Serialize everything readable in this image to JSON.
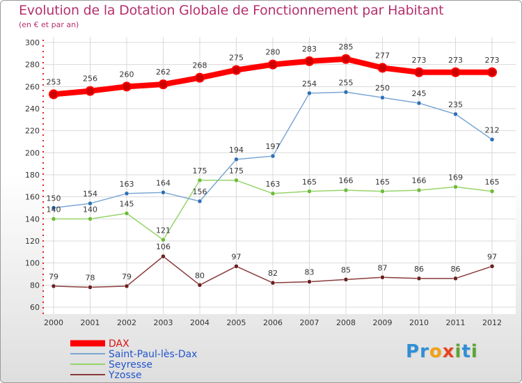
{
  "header": {
    "title": "Evolution de la Dotation Globale de Fonctionnement par Habitant",
    "subtitle": "(en € et par an)"
  },
  "logo": {
    "text": "Proxiti",
    "letters": [
      {
        "ch": "P",
        "color": "#2f8fd6"
      },
      {
        "ch": "r",
        "color": "#2f8fd6"
      },
      {
        "ch": "o",
        "color": "#f2a016"
      },
      {
        "ch": "x",
        "color": "#e8431f"
      },
      {
        "ch": "i",
        "color": "#5aa532"
      },
      {
        "ch": "t",
        "color": "#2f8fd6"
      },
      {
        "ch": "i",
        "color": "#5aa532"
      }
    ]
  },
  "chart_data": {
    "type": "line",
    "title": "Evolution de la Dotation Globale de Fonctionnement par Habitant",
    "subtitle": "(en € et par an)",
    "xlabel": "",
    "ylabel": "",
    "categories": [
      "2000",
      "2001",
      "2002",
      "2003",
      "2004",
      "2005",
      "2006",
      "2007",
      "2008",
      "2009",
      "2010",
      "2011",
      "2012"
    ],
    "ylim": [
      60,
      300
    ],
    "yticks": [
      60,
      80,
      100,
      120,
      140,
      160,
      180,
      200,
      220,
      240,
      260,
      280,
      300
    ],
    "grid": true,
    "legend_position": "bottom-left",
    "series": [
      {
        "name": "DAX",
        "color": "#ff0000",
        "marker_color": "#cc0000",
        "line_width": 8,
        "marker_radius": 6,
        "values": [
          253,
          256,
          260,
          262,
          268,
          275,
          280,
          283,
          285,
          277,
          273,
          273,
          273
        ]
      },
      {
        "name": "Saint-Paul-lès-Dax",
        "color": "#7ba7d4",
        "marker_color": "#2e6fb5",
        "line_width": 1.5,
        "marker_radius": 3,
        "values": [
          150,
          154,
          163,
          164,
          156,
          194,
          197,
          254,
          255,
          250,
          245,
          235,
          212
        ]
      },
      {
        "name": "Seyresse",
        "color": "#96d46a",
        "marker_color": "#6dbb38",
        "line_width": 1.5,
        "marker_radius": 3,
        "values": [
          140,
          140,
          145,
          121,
          175,
          175,
          163,
          165,
          166,
          165,
          166,
          169,
          165
        ]
      },
      {
        "name": "Yzosse",
        "color": "#8a3a3a",
        "marker_color": "#6b1f1f",
        "line_width": 1.5,
        "marker_radius": 3,
        "values": [
          79,
          78,
          79,
          106,
          80,
          97,
          82,
          83,
          85,
          87,
          86,
          86,
          97
        ]
      }
    ]
  }
}
